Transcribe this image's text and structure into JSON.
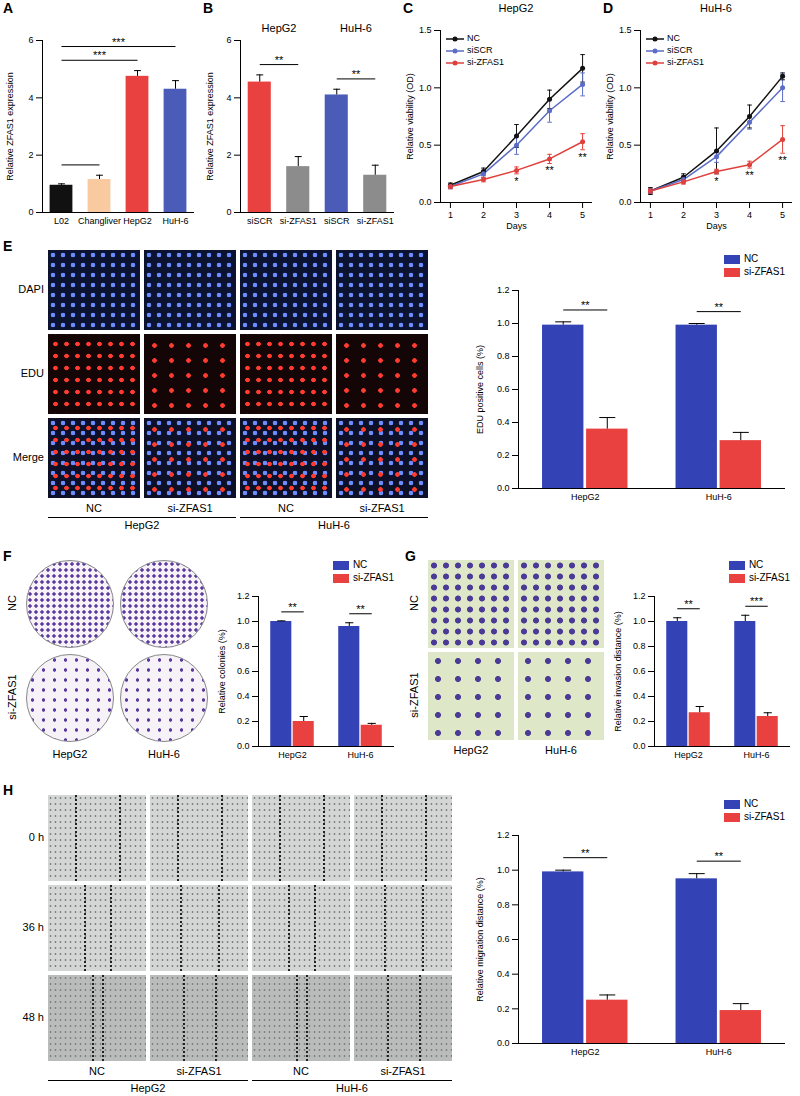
{
  "chart_data": [
    {
      "panel": "A",
      "type": "bar",
      "categories": [
        "L02",
        "Changliver",
        "HepG2",
        "HuH-6"
      ],
      "values": [
        0.95,
        1.15,
        4.75,
        4.3
      ],
      "errors": [
        0.05,
        0.15,
        0.2,
        0.3
      ],
      "colors": [
        "#111111",
        "#f9c9a0",
        "#e8413f",
        "#4a5cb8"
      ],
      "ylabel": "Relative ZFAS1 expression",
      "ylim": [
        0,
        6
      ],
      "yticks": [
        0,
        2,
        4,
        6
      ],
      "significance": [
        {
          "from": 0,
          "to": 1
        },
        {
          "from": 0,
          "to": 2,
          "text": "***"
        },
        {
          "from": 0,
          "to": 3,
          "text": "***"
        }
      ]
    },
    {
      "panel": "B",
      "type": "bar",
      "groups": [
        {
          "name": "HepG2",
          "from": 0,
          "to": 1
        },
        {
          "name": "HuH-6",
          "from": 2,
          "to": 3
        }
      ],
      "categories": [
        "siSCR",
        "si-ZFAS1",
        "siSCR",
        "si-ZFAS1"
      ],
      "values": [
        4.55,
        1.6,
        4.1,
        1.3
      ],
      "errors": [
        0.25,
        0.35,
        0.2,
        0.35
      ],
      "colors": [
        "#e8413f",
        "#8c8c8c",
        "#4a5cb8",
        "#8c8c8c"
      ],
      "ylabel": "Relative ZFAS1 expression",
      "ylim": [
        0,
        6
      ],
      "yticks": [
        0,
        2,
        4,
        6
      ],
      "significance": [
        {
          "from": 0,
          "to": 1,
          "text": "**"
        },
        {
          "from": 2,
          "to": 3,
          "text": "**"
        }
      ]
    },
    {
      "panel": "C",
      "type": "line",
      "title": "HepG2",
      "marker": "circle",
      "legend": "top-left",
      "x": [
        1,
        2,
        3,
        4,
        5
      ],
      "xlabel": "Days",
      "ylabel": "Relative viability (OD)",
      "xlim": [
        0.7,
        5.3
      ],
      "xticks": [
        1,
        2,
        3,
        4,
        5
      ],
      "ylim": [
        0,
        1.5
      ],
      "yticks": [
        {
          "value": 0,
          "label": "0.0"
        },
        0.5,
        {
          "value": 1,
          "label": "1.0"
        },
        1.5
      ],
      "series": [
        {
          "name": "NC",
          "color": "#111111",
          "values": [
            0.15,
            0.27,
            0.58,
            0.9,
            1.17
          ],
          "errors": [
            0.02,
            0.03,
            0.1,
            0.08,
            0.12
          ]
        },
        {
          "name": "siSCR",
          "color": "#5a6cc6",
          "values": [
            0.14,
            0.25,
            0.5,
            0.8,
            1.03
          ],
          "errors": [
            0.02,
            0.03,
            0.08,
            0.1,
            0.1
          ]
        },
        {
          "name": "si-ZFAS1",
          "color": "#e0403c",
          "values": [
            0.14,
            0.2,
            0.28,
            0.38,
            0.53
          ],
          "errors": [
            0.02,
            0.02,
            0.03,
            0.04,
            0.07
          ]
        }
      ],
      "significance": [
        {
          "x": 3,
          "text": "*"
        },
        {
          "x": 4,
          "text": "**"
        },
        {
          "x": 5,
          "text": "**"
        }
      ]
    },
    {
      "panel": "D",
      "type": "line",
      "title": "HuH-6",
      "marker": "circle",
      "legend": "top-left",
      "x": [
        1,
        2,
        3,
        4,
        5
      ],
      "xlabel": "Days",
      "ylabel": "Relative viability (OD)",
      "xlim": [
        0.7,
        5.3
      ],
      "xticks": [
        1,
        2,
        3,
        4,
        5
      ],
      "ylim": [
        0,
        1.5
      ],
      "yticks": [
        {
          "value": 0,
          "label": "0.0"
        },
        0.5,
        {
          "value": 1,
          "label": "1.0"
        },
        1.5
      ],
      "series": [
        {
          "name": "NC",
          "color": "#111111",
          "values": [
            0.1,
            0.22,
            0.45,
            0.75,
            1.1
          ],
          "errors": [
            0.03,
            0.03,
            0.2,
            0.1,
            0.03
          ]
        },
        {
          "name": "siSCR",
          "color": "#5a6cc6",
          "values": [
            0.1,
            0.2,
            0.4,
            0.7,
            1.0
          ],
          "errors": [
            0.02,
            0.03,
            0.05,
            0.06,
            0.12
          ]
        },
        {
          "name": "si-ZFAS1",
          "color": "#e0403c",
          "values": [
            0.1,
            0.18,
            0.27,
            0.33,
            0.55
          ],
          "errors": [
            0.02,
            0.02,
            0.02,
            0.03,
            0.12
          ]
        }
      ],
      "significance": [
        {
          "x": 3,
          "text": "*"
        },
        {
          "x": 4,
          "text": "**"
        },
        {
          "x": 5,
          "text": "**"
        }
      ]
    },
    {
      "panel": "E",
      "type": "bar",
      "legend": "top-right",
      "images": {
        "rows": [
          "DAPI",
          "EDU",
          "Merge"
        ],
        "columns": [
          "NC",
          "si-ZFAS1",
          "NC",
          "si-ZFAS1"
        ],
        "groups": [
          "HepG2",
          "HuH-6"
        ]
      },
      "categories": [
        "HepG2",
        "HuH-6"
      ],
      "series": [
        {
          "name": "NC",
          "color": "#3342b5",
          "values": [
            0.99,
            0.99
          ],
          "errors": [
            0.02,
            0.01
          ]
        },
        {
          "name": "si-ZFAS1",
          "color": "#e8413f",
          "values": [
            0.36,
            0.29
          ],
          "errors": [
            0.07,
            0.05
          ]
        }
      ],
      "ylabel": "EDU positive cells (%)",
      "ylim": [
        0,
        1.2
      ],
      "yticks": [
        {
          "value": 0,
          "label": "0.0"
        },
        0.2,
        0.4,
        0.6,
        0.8,
        {
          "value": 1,
          "label": "1.0"
        },
        1.2
      ],
      "significance": [
        "**",
        "**"
      ]
    },
    {
      "panel": "F",
      "type": "bar",
      "legend": "top-right",
      "images": {
        "rows": [
          "NC",
          "si-ZFAS1"
        ],
        "columns": [
          "HepG2",
          "HuH-6"
        ]
      },
      "categories": [
        "HepG2",
        "HuH-6"
      ],
      "series": [
        {
          "name": "NC",
          "color": "#3342b5",
          "values": [
            1.0,
            0.96
          ],
          "errors": [
            0.005,
            0.03
          ]
        },
        {
          "name": "si-ZFAS1",
          "color": "#e8413f",
          "values": [
            0.2,
            0.17
          ],
          "errors": [
            0.04,
            0.015
          ]
        }
      ],
      "ylabel": "Relative colonies (%)",
      "ylim": [
        0,
        1.2
      ],
      "yticks": [
        {
          "value": 0,
          "label": "0.0"
        },
        0.2,
        0.4,
        0.6,
        0.8,
        {
          "value": 1,
          "label": "1.0"
        },
        1.2
      ],
      "significance": [
        "**",
        "**"
      ]
    },
    {
      "panel": "G",
      "type": "bar",
      "legend": "top-right",
      "images": {
        "rows": [
          "NC",
          "si-ZFAS1"
        ],
        "columns": [
          "HepG2",
          "HuH-6"
        ]
      },
      "categories": [
        "HepG2",
        "HuH-6"
      ],
      "series": [
        {
          "name": "NC",
          "color": "#3342b5",
          "values": [
            1.0,
            1.0
          ],
          "errors": [
            0.03,
            0.05
          ]
        },
        {
          "name": "si-ZFAS1",
          "color": "#e8413f",
          "values": [
            0.27,
            0.24
          ],
          "errors": [
            0.05,
            0.03
          ]
        }
      ],
      "ylabel": "Relative invasion distance (%)",
      "ylim": [
        0,
        1.2
      ],
      "yticks": [
        {
          "value": 0,
          "label": "0.0"
        },
        0.2,
        0.4,
        0.6,
        0.8,
        {
          "value": 1,
          "label": "1.0"
        },
        1.2
      ],
      "significance": [
        "**",
        "***"
      ]
    },
    {
      "panel": "H",
      "type": "bar",
      "legend": "top-right",
      "images": {
        "rows": [
          "0 h",
          "36 h",
          "48 h"
        ],
        "columns": [
          "NC",
          "si-ZFAS1",
          "NC",
          "si-ZFAS1"
        ],
        "groups": [
          "HepG2",
          "HuH-6"
        ]
      },
      "categories": [
        "HepG2",
        "HuH-6"
      ],
      "series": [
        {
          "name": "NC",
          "color": "#3342b5",
          "values": [
            0.99,
            0.95
          ],
          "errors": [
            0.01,
            0.03
          ]
        },
        {
          "name": "si-ZFAS1",
          "color": "#e8413f",
          "values": [
            0.25,
            0.19
          ],
          "errors": [
            0.03,
            0.04
          ]
        }
      ],
      "ylabel": "Relative migration distance (%)",
      "ylim": [
        0,
        1.2
      ],
      "yticks": [
        {
          "value": 0,
          "label": "0.0"
        },
        0.2,
        0.4,
        0.6,
        0.8,
        {
          "value": 1,
          "label": "1.0"
        },
        1.2
      ],
      "significance": [
        "**",
        "**"
      ]
    }
  ]
}
